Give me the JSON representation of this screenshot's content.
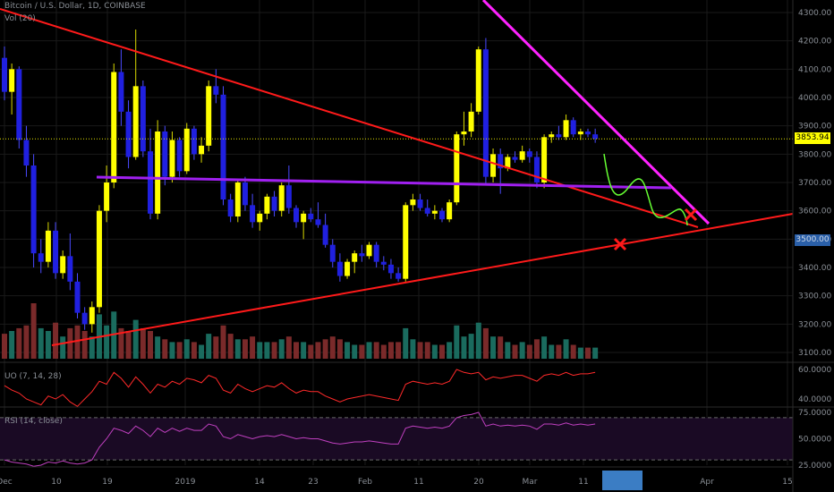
{
  "legend": {
    "title": "Bitcoin / U.S. Dollar, 1D, COINBASE",
    "volume": "Vol (20)",
    "uo": "UO (7, 14, 28)",
    "rsi": "RSI (14, close)"
  },
  "price_axis": {
    "ticks": [
      "4300.00",
      "4200.00",
      "4100.00",
      "4000.00",
      "3900.00",
      "3800.00",
      "3700.00",
      "3600.00",
      "3500.00",
      "3400.00",
      "3300.00",
      "3200.00",
      "3100.00"
    ],
    "current_price": "3853.94",
    "second_tag": "3500.00"
  },
  "uo_axis": {
    "ticks": [
      "60.0000",
      "40.0000"
    ]
  },
  "rsi_axis": {
    "ticks": [
      "75.0000",
      "50.0000",
      "25.0000"
    ]
  },
  "time_axis": {
    "ticks": [
      "Dec",
      "10",
      "19",
      "2019",
      "14",
      "23",
      "Feb",
      "11",
      "20",
      "Mar",
      "11",
      "Apr",
      "15"
    ]
  },
  "colors": {
    "background": "#000000",
    "bull": "#ffff00",
    "bear": "#2020e0",
    "vol_up": "#1a6b5e",
    "vol_down": "#7a2a2a",
    "trendline": "#ff1a1a",
    "magenta": "#ff22ff",
    "purple": "#a020f0",
    "projection": "#66ff33",
    "current_line": "#e6e600",
    "uo": "#ff2a2a",
    "rsi": "#c040c0",
    "grid": "#1a1a1a"
  },
  "chart_data": {
    "type": "candlestick",
    "symbol": "Bitcoin / U.S. Dollar, 1D, COINBASE",
    "ylim": [
      3050,
      4350
    ],
    "candles": [
      {
        "o": 4140,
        "h": 4180,
        "l": 3990,
        "c": 4020
      },
      {
        "o": 4020,
        "h": 4120,
        "l": 3940,
        "c": 4100
      },
      {
        "o": 4100,
        "h": 4110,
        "l": 3820,
        "c": 3850
      },
      {
        "o": 3850,
        "h": 3900,
        "l": 3720,
        "c": 3760
      },
      {
        "o": 3760,
        "h": 3800,
        "l": 3400,
        "c": 3450
      },
      {
        "o": 3450,
        "h": 3500,
        "l": 3380,
        "c": 3420
      },
      {
        "o": 3420,
        "h": 3560,
        "l": 3400,
        "c": 3530
      },
      {
        "o": 3530,
        "h": 3560,
        "l": 3360,
        "c": 3380
      },
      {
        "o": 3380,
        "h": 3460,
        "l": 3360,
        "c": 3440
      },
      {
        "o": 3440,
        "h": 3520,
        "l": 3320,
        "c": 3350
      },
      {
        "o": 3350,
        "h": 3380,
        "l": 3220,
        "c": 3240
      },
      {
        "o": 3240,
        "h": 3260,
        "l": 3180,
        "c": 3200
      },
      {
        "o": 3200,
        "h": 3280,
        "l": 3170,
        "c": 3260
      },
      {
        "o": 3260,
        "h": 3620,
        "l": 3240,
        "c": 3600
      },
      {
        "o": 3600,
        "h": 3760,
        "l": 3560,
        "c": 3700
      },
      {
        "o": 3700,
        "h": 4120,
        "l": 3680,
        "c": 4090
      },
      {
        "o": 4090,
        "h": 4170,
        "l": 3900,
        "c": 3950
      },
      {
        "o": 3950,
        "h": 3990,
        "l": 3750,
        "c": 3790
      },
      {
        "o": 3790,
        "h": 4240,
        "l": 3780,
        "c": 4040
      },
      {
        "o": 4040,
        "h": 4060,
        "l": 3790,
        "c": 3810
      },
      {
        "o": 3810,
        "h": 3890,
        "l": 3570,
        "c": 3590
      },
      {
        "o": 3590,
        "h": 3920,
        "l": 3570,
        "c": 3880
      },
      {
        "o": 3880,
        "h": 3900,
        "l": 3690,
        "c": 3720
      },
      {
        "o": 3720,
        "h": 3880,
        "l": 3700,
        "c": 3850
      },
      {
        "o": 3850,
        "h": 3860,
        "l": 3720,
        "c": 3740
      },
      {
        "o": 3740,
        "h": 3910,
        "l": 3730,
        "c": 3890
      },
      {
        "o": 3890,
        "h": 3900,
        "l": 3780,
        "c": 3800
      },
      {
        "o": 3800,
        "h": 3860,
        "l": 3770,
        "c": 3830
      },
      {
        "o": 3830,
        "h": 4060,
        "l": 3810,
        "c": 4040
      },
      {
        "o": 4040,
        "h": 4100,
        "l": 3980,
        "c": 4010
      },
      {
        "o": 4010,
        "h": 4040,
        "l": 3620,
        "c": 3640
      },
      {
        "o": 3640,
        "h": 3660,
        "l": 3560,
        "c": 3580
      },
      {
        "o": 3580,
        "h": 3710,
        "l": 3560,
        "c": 3700
      },
      {
        "o": 3700,
        "h": 3720,
        "l": 3600,
        "c": 3620
      },
      {
        "o": 3620,
        "h": 3660,
        "l": 3540,
        "c": 3560
      },
      {
        "o": 3560,
        "h": 3600,
        "l": 3530,
        "c": 3590
      },
      {
        "o": 3590,
        "h": 3660,
        "l": 3570,
        "c": 3650
      },
      {
        "o": 3650,
        "h": 3670,
        "l": 3580,
        "c": 3600
      },
      {
        "o": 3600,
        "h": 3700,
        "l": 3580,
        "c": 3690
      },
      {
        "o": 3690,
        "h": 3760,
        "l": 3590,
        "c": 3610
      },
      {
        "o": 3610,
        "h": 3620,
        "l": 3540,
        "c": 3560
      },
      {
        "o": 3560,
        "h": 3600,
        "l": 3500,
        "c": 3590
      },
      {
        "o": 3590,
        "h": 3610,
        "l": 3560,
        "c": 3570
      },
      {
        "o": 3570,
        "h": 3630,
        "l": 3540,
        "c": 3550
      },
      {
        "o": 3550,
        "h": 3590,
        "l": 3470,
        "c": 3480
      },
      {
        "o": 3480,
        "h": 3500,
        "l": 3400,
        "c": 3420
      },
      {
        "o": 3420,
        "h": 3450,
        "l": 3350,
        "c": 3370
      },
      {
        "o": 3370,
        "h": 3430,
        "l": 3360,
        "c": 3420
      },
      {
        "o": 3420,
        "h": 3460,
        "l": 3380,
        "c": 3450
      },
      {
        "o": 3450,
        "h": 3480,
        "l": 3420,
        "c": 3440
      },
      {
        "o": 3440,
        "h": 3490,
        "l": 3430,
        "c": 3480
      },
      {
        "o": 3480,
        "h": 3490,
        "l": 3400,
        "c": 3420
      },
      {
        "o": 3420,
        "h": 3440,
        "l": 3390,
        "c": 3410
      },
      {
        "o": 3410,
        "h": 3430,
        "l": 3360,
        "c": 3380
      },
      {
        "o": 3380,
        "h": 3400,
        "l": 3350,
        "c": 3360
      },
      {
        "o": 3360,
        "h": 3630,
        "l": 3350,
        "c": 3620
      },
      {
        "o": 3620,
        "h": 3660,
        "l": 3600,
        "c": 3640
      },
      {
        "o": 3640,
        "h": 3660,
        "l": 3600,
        "c": 3610
      },
      {
        "o": 3610,
        "h": 3640,
        "l": 3580,
        "c": 3590
      },
      {
        "o": 3590,
        "h": 3620,
        "l": 3570,
        "c": 3600
      },
      {
        "o": 3600,
        "h": 3610,
        "l": 3560,
        "c": 3570
      },
      {
        "o": 3570,
        "h": 3640,
        "l": 3560,
        "c": 3630
      },
      {
        "o": 3630,
        "h": 3880,
        "l": 3620,
        "c": 3870
      },
      {
        "o": 3870,
        "h": 3950,
        "l": 3830,
        "c": 3880
      },
      {
        "o": 3880,
        "h": 3980,
        "l": 3860,
        "c": 3950
      },
      {
        "o": 3950,
        "h": 4180,
        "l": 3940,
        "c": 4170
      },
      {
        "o": 4170,
        "h": 4210,
        "l": 3690,
        "c": 3720
      },
      {
        "o": 3720,
        "h": 3820,
        "l": 3700,
        "c": 3800
      },
      {
        "o": 3800,
        "h": 3820,
        "l": 3660,
        "c": 3750
      },
      {
        "o": 3750,
        "h": 3800,
        "l": 3740,
        "c": 3790
      },
      {
        "o": 3790,
        "h": 3810,
        "l": 3770,
        "c": 3780
      },
      {
        "o": 3780,
        "h": 3830,
        "l": 3770,
        "c": 3810
      },
      {
        "o": 3810,
        "h": 3820,
        "l": 3770,
        "c": 3790
      },
      {
        "o": 3790,
        "h": 3810,
        "l": 3680,
        "c": 3700
      },
      {
        "o": 3700,
        "h": 3870,
        "l": 3680,
        "c": 3860
      },
      {
        "o": 3860,
        "h": 3880,
        "l": 3840,
        "c": 3870
      },
      {
        "o": 3870,
        "h": 3900,
        "l": 3850,
        "c": 3860
      },
      {
        "o": 3860,
        "h": 3940,
        "l": 3850,
        "c": 3920
      },
      {
        "o": 3920,
        "h": 3930,
        "l": 3860,
        "c": 3870
      },
      {
        "o": 3870,
        "h": 3890,
        "l": 3850,
        "c": 3880
      },
      {
        "o": 3880,
        "h": 3890,
        "l": 3860,
        "c": 3870
      },
      {
        "o": 3870,
        "h": 3890,
        "l": 3840,
        "c": 3853.94
      }
    ],
    "volume": [
      {
        "v": 0.45,
        "up": false
      },
      {
        "v": 0.5,
        "up": true
      },
      {
        "v": 0.55,
        "up": false
      },
      {
        "v": 0.6,
        "up": false
      },
      {
        "v": 1.0,
        "up": false
      },
      {
        "v": 0.55,
        "up": true
      },
      {
        "v": 0.5,
        "up": true
      },
      {
        "v": 0.65,
        "up": false
      },
      {
        "v": 0.4,
        "up": true
      },
      {
        "v": 0.55,
        "up": false
      },
      {
        "v": 0.6,
        "up": false
      },
      {
        "v": 0.5,
        "up": false
      },
      {
        "v": 0.4,
        "up": true
      },
      {
        "v": 0.8,
        "up": true
      },
      {
        "v": 0.6,
        "up": true
      },
      {
        "v": 0.85,
        "up": true
      },
      {
        "v": 0.55,
        "up": false
      },
      {
        "v": 0.5,
        "up": false
      },
      {
        "v": 0.7,
        "up": true
      },
      {
        "v": 0.55,
        "up": false
      },
      {
        "v": 0.5,
        "up": false
      },
      {
        "v": 0.4,
        "up": true
      },
      {
        "v": 0.35,
        "up": false
      },
      {
        "v": 0.3,
        "up": true
      },
      {
        "v": 0.3,
        "up": false
      },
      {
        "v": 0.35,
        "up": true
      },
      {
        "v": 0.3,
        "up": false
      },
      {
        "v": 0.25,
        "up": true
      },
      {
        "v": 0.45,
        "up": true
      },
      {
        "v": 0.4,
        "up": false
      },
      {
        "v": 0.6,
        "up": false
      },
      {
        "v": 0.45,
        "up": false
      },
      {
        "v": 0.35,
        "up": true
      },
      {
        "v": 0.35,
        "up": false
      },
      {
        "v": 0.4,
        "up": false
      },
      {
        "v": 0.3,
        "up": true
      },
      {
        "v": 0.3,
        "up": true
      },
      {
        "v": 0.3,
        "up": false
      },
      {
        "v": 0.35,
        "up": true
      },
      {
        "v": 0.4,
        "up": false
      },
      {
        "v": 0.3,
        "up": false
      },
      {
        "v": 0.3,
        "up": true
      },
      {
        "v": 0.25,
        "up": false
      },
      {
        "v": 0.3,
        "up": false
      },
      {
        "v": 0.35,
        "up": false
      },
      {
        "v": 0.4,
        "up": false
      },
      {
        "v": 0.35,
        "up": false
      },
      {
        "v": 0.3,
        "up": true
      },
      {
        "v": 0.25,
        "up": true
      },
      {
        "v": 0.25,
        "up": false
      },
      {
        "v": 0.3,
        "up": true
      },
      {
        "v": 0.3,
        "up": false
      },
      {
        "v": 0.25,
        "up": false
      },
      {
        "v": 0.3,
        "up": false
      },
      {
        "v": 0.3,
        "up": false
      },
      {
        "v": 0.55,
        "up": true
      },
      {
        "v": 0.35,
        "up": true
      },
      {
        "v": 0.3,
        "up": false
      },
      {
        "v": 0.3,
        "up": false
      },
      {
        "v": 0.25,
        "up": true
      },
      {
        "v": 0.25,
        "up": false
      },
      {
        "v": 0.3,
        "up": true
      },
      {
        "v": 0.6,
        "up": true
      },
      {
        "v": 0.4,
        "up": true
      },
      {
        "v": 0.45,
        "up": true
      },
      {
        "v": 0.65,
        "up": true
      },
      {
        "v": 0.55,
        "up": false
      },
      {
        "v": 0.4,
        "up": true
      },
      {
        "v": 0.4,
        "up": false
      },
      {
        "v": 0.3,
        "up": true
      },
      {
        "v": 0.25,
        "up": false
      },
      {
        "v": 0.3,
        "up": true
      },
      {
        "v": 0.25,
        "up": false
      },
      {
        "v": 0.35,
        "up": false
      },
      {
        "v": 0.4,
        "up": true
      },
      {
        "v": 0.25,
        "up": true
      },
      {
        "v": 0.25,
        "up": false
      },
      {
        "v": 0.35,
        "up": true
      },
      {
        "v": 0.25,
        "up": false
      },
      {
        "v": 0.2,
        "up": true
      },
      {
        "v": 0.2,
        "up": false
      },
      {
        "v": 0.2,
        "up": true
      }
    ],
    "uo": [
      49,
      46,
      44,
      40,
      38,
      36,
      42,
      40,
      43,
      38,
      35,
      40,
      45,
      52,
      50,
      58,
      54,
      48,
      55,
      50,
      44,
      50,
      48,
      52,
      50,
      54,
      53,
      51,
      56,
      54,
      46,
      44,
      50,
      47,
      45,
      47,
      49,
      48,
      51,
      47,
      44,
      46,
      45,
      45,
      42,
      40,
      38,
      40,
      41,
      42,
      43,
      42,
      41,
      40,
      39,
      50,
      52,
      51,
      50,
      51,
      50,
      52,
      60,
      58,
      57,
      58,
      53,
      55,
      54,
      55,
      56,
      56,
      54,
      52,
      56,
      57,
      56,
      58,
      56,
      57,
      57,
      58
    ],
    "rsi": [
      30,
      28,
      27,
      26,
      24,
      25,
      28,
      27,
      29,
      27,
      26,
      27,
      30,
      42,
      50,
      60,
      58,
      55,
      62,
      58,
      52,
      60,
      56,
      60,
      57,
      60,
      58,
      58,
      64,
      62,
      52,
      50,
      54,
      52,
      50,
      52,
      53,
      52,
      54,
      52,
      50,
      51,
      50,
      50,
      48,
      46,
      45,
      46,
      47,
      47,
      48,
      47,
      46,
      45,
      45,
      60,
      62,
      61,
      60,
      61,
      60,
      62,
      70,
      72,
      73,
      75,
      62,
      64,
      62,
      63,
      62,
      63,
      62,
      59,
      64,
      64,
      63,
      65,
      63,
      64,
      63,
      64
    ]
  }
}
